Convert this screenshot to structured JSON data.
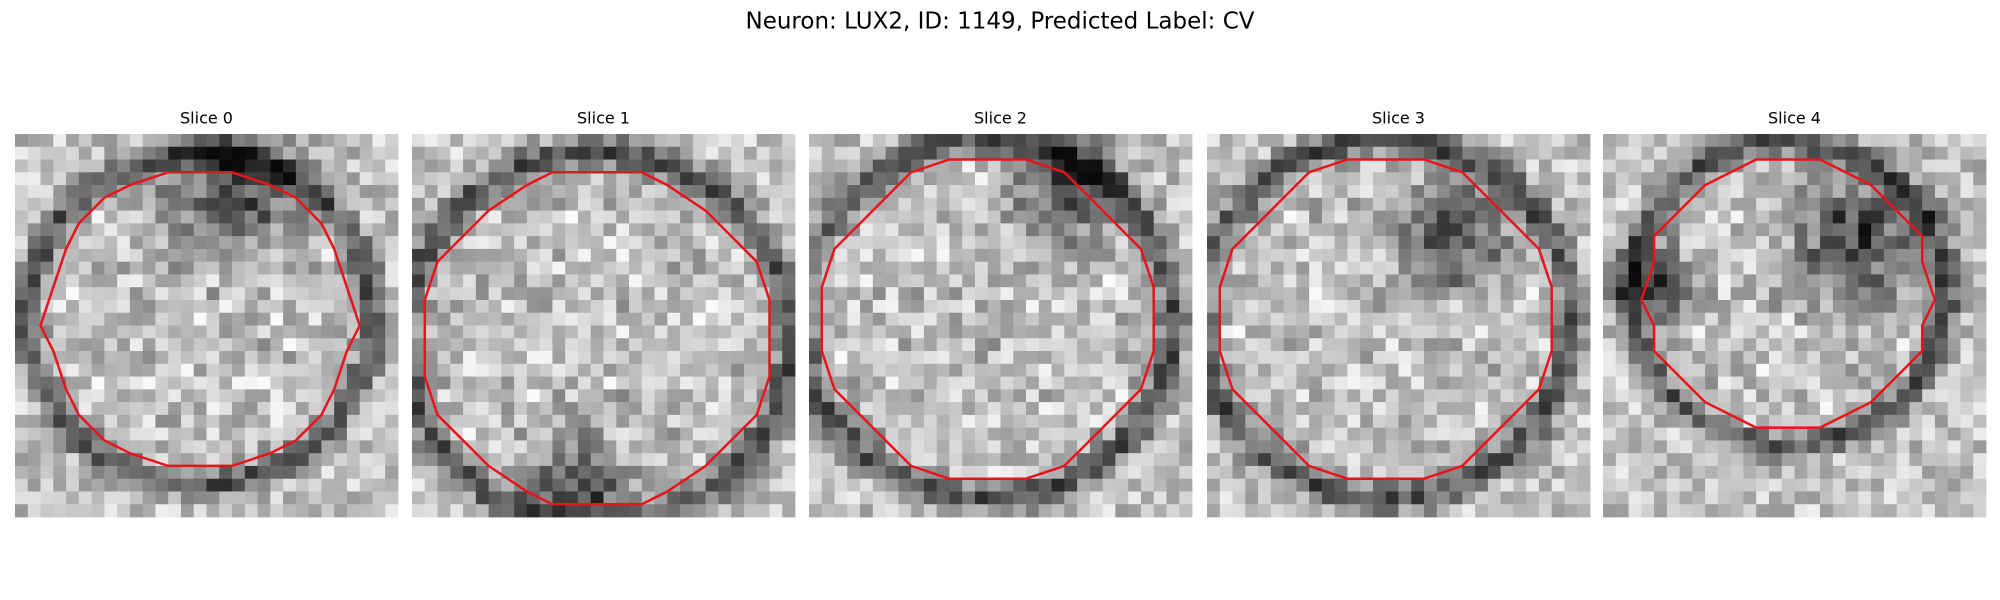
{
  "title": "Neuron: LUX2, ID: 1149, Predicted Label: CV",
  "panels": [
    {
      "title": "Slice 0"
    },
    {
      "title": "Slice 1"
    },
    {
      "title": "Slice 2"
    },
    {
      "title": "Slice 3"
    },
    {
      "title": "Slice 4"
    }
  ]
}
